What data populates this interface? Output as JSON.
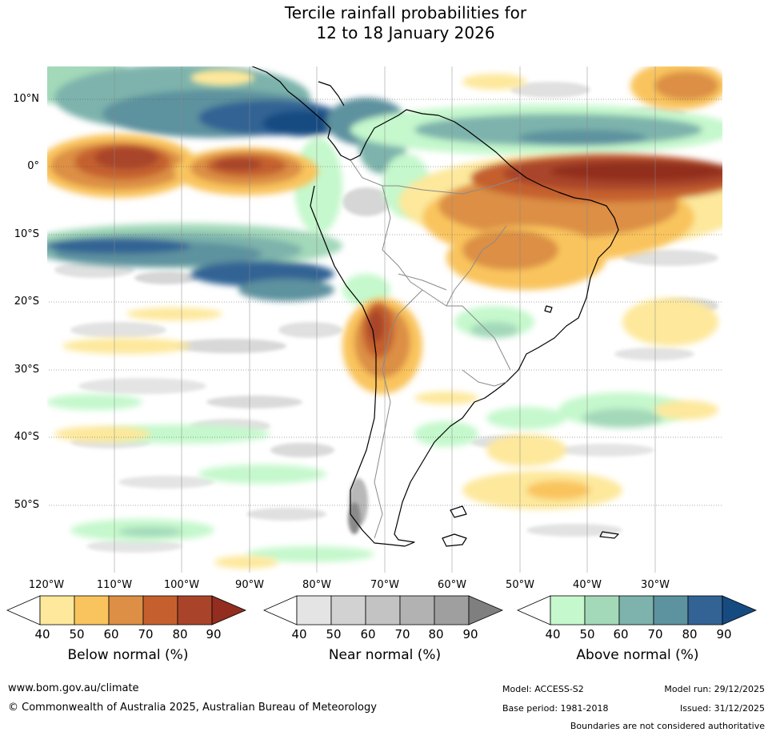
{
  "title": "Tercile rainfall probabilities for\n12 to 18 January 2026",
  "map": {
    "lat_labels": [
      "10°N",
      "0°",
      "10°S",
      "20°S",
      "30°S",
      "40°S",
      "50°S"
    ],
    "lon_labels": [
      "120°W",
      "110°W",
      "100°W",
      "90°W",
      "80°W",
      "70°W",
      "60°W",
      "50°W",
      "40°W",
      "30°W"
    ],
    "legend": {
      "below": {
        "label": "Below normal (%)",
        "ticks": [
          "40",
          "50",
          "60",
          "70",
          "80",
          "90"
        ],
        "colors": [
          "#ffffff",
          "#fde89b",
          "#f9c45d",
          "#dc8f45",
          "#c5602e",
          "#a9442a",
          "#922d1f"
        ]
      },
      "near": {
        "label": "Near normal (%)",
        "ticks": [
          "40",
          "50",
          "60",
          "70",
          "80",
          "90"
        ],
        "colors": [
          "#ffffff",
          "#e4e4e4",
          "#d2d2d2",
          "#c3c3c3",
          "#b2b2b2",
          "#9f9f9f",
          "#7f7f7f"
        ]
      },
      "above": {
        "label": "Above normal (%)",
        "ticks": [
          "40",
          "50",
          "60",
          "70",
          "80",
          "90"
        ],
        "colors": [
          "#ffffff",
          "#c5f8cc",
          "#a3d8b9",
          "#7db3ac",
          "#5d929f",
          "#336394",
          "#164b82"
        ]
      }
    }
  },
  "footer": {
    "url": "www.bom.gov.au/climate",
    "copyright": "© Commonwealth of Australia 2025, Australian Bureau of Meteorology",
    "model": "Model: ACCESS-S2",
    "base_period": "Base period: 1981-2018",
    "model_run": "Model run: 29/12/2025",
    "issued": "Issued: 31/12/2025",
    "disclaimer": "Boundaries are not considered authoritative"
  }
}
